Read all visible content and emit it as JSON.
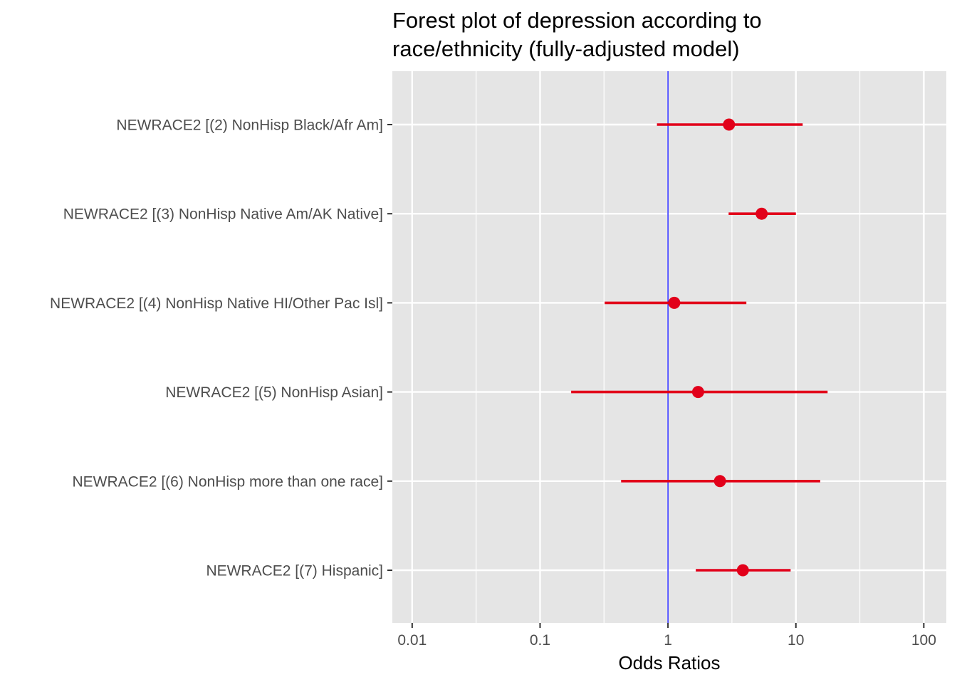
{
  "chart_data": {
    "type": "scatter",
    "title_lines": [
      "Forest plot of depression according to",
      "race/ethnicity (fully-adjusted model)"
    ],
    "xlabel": "Odds Ratios",
    "ylabel": "",
    "x_scale": "log10",
    "xlim": [
      0.007,
      150
    ],
    "x_ticks": [
      0.01,
      0.1,
      1,
      10,
      100
    ],
    "x_tick_labels": [
      "0.01",
      "0.1",
      "1",
      "10",
      "100"
    ],
    "reference_line": {
      "x": 1,
      "color": "#0000ff"
    },
    "categories": [
      "NEWRACE2 [(2) NonHisp Black/Afr Am]",
      "NEWRACE2 [(3) NonHisp Native Am/AK Native]",
      "NEWRACE2 [(4) NonHisp Native HI/Other Pac Isl]",
      "NEWRACE2 [(5) NonHisp Asian]",
      "NEWRACE2 [(6) NonHisp more than one race]",
      "NEWRACE2 [(7) Hispanic]"
    ],
    "estimates": [
      3.0,
      5.4,
      1.12,
      1.72,
      2.55,
      3.85
    ],
    "ci_lower": [
      0.82,
      2.98,
      0.32,
      0.175,
      0.43,
      1.65
    ],
    "ci_upper": [
      11.3,
      10.0,
      4.1,
      17.7,
      15.5,
      9.1
    ],
    "point_color": "#e2001a",
    "grid": true,
    "panel_background": "#e5e5e5",
    "gridline_color": "#ffffff",
    "legend": "none"
  }
}
